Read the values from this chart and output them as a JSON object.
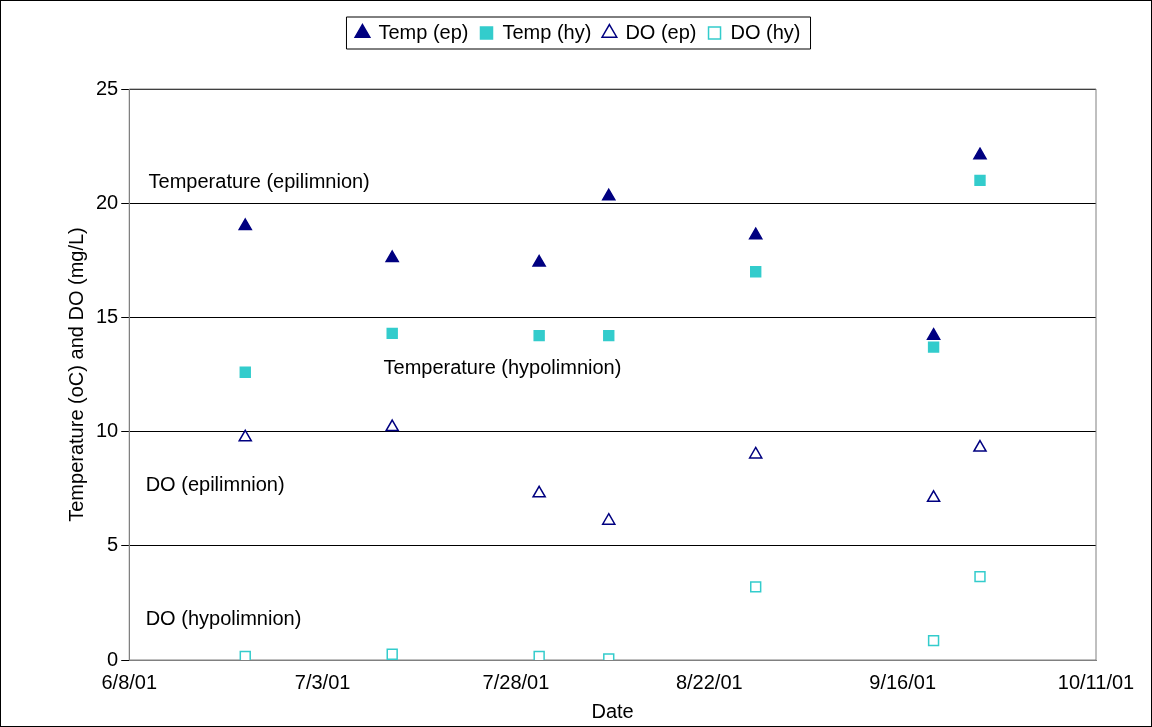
{
  "chart_data": {
    "type": "scatter",
    "xlabel": "Date",
    "ylabel": "Temperature (oC) and DO (mg/L)",
    "xlim": [
      "2001-06-08",
      "2001-10-11"
    ],
    "xticks": [
      {
        "value": "2001-06-08",
        "label": "6/8/01"
      },
      {
        "value": "2001-07-03",
        "label": "7/3/01"
      },
      {
        "value": "2001-07-28",
        "label": "7/28/01"
      },
      {
        "value": "2001-08-22",
        "label": "8/22/01"
      },
      {
        "value": "2001-09-16",
        "label": "9/16/01"
      },
      {
        "value": "2001-10-11",
        "label": "10/11/01"
      }
    ],
    "ylim": [
      0,
      25
    ],
    "yticks": [
      0,
      5,
      10,
      15,
      20,
      25
    ],
    "grid": "y",
    "legend": "top",
    "x": [
      "2001-06-23",
      "2001-07-12",
      "2001-07-31",
      "2001-08-09",
      "2001-08-28",
      "2001-09-20",
      "2001-09-26"
    ],
    "series": [
      {
        "name": "Temp (ep)",
        "color": "#000080",
        "marker": "triangle",
        "values": [
          19.0,
          17.6,
          17.4,
          20.3,
          18.6,
          14.2,
          22.1
        ]
      },
      {
        "name": "Temp (hy)",
        "color": "#33cccc",
        "marker": "square",
        "values": [
          12.6,
          14.3,
          14.2,
          14.2,
          17.0,
          13.7,
          21.0
        ]
      },
      {
        "name": "DO (ep)",
        "color": "#000080",
        "marker": "triangle-open",
        "values": [
          9.75,
          10.2,
          7.3,
          6.1,
          9.0,
          7.1,
          9.3
        ]
      },
      {
        "name": "DO (hy)",
        "color": "#33cccc",
        "marker": "square-open",
        "values": [
          0.15,
          0.25,
          0.15,
          0.05,
          3.2,
          0.85,
          3.65
        ]
      }
    ],
    "annotations": [
      "Temperature (epilimnion)",
      "Temperature (hypolimnion)",
      "DO (epilimnion)",
      "DO (hypolimnion)"
    ]
  }
}
